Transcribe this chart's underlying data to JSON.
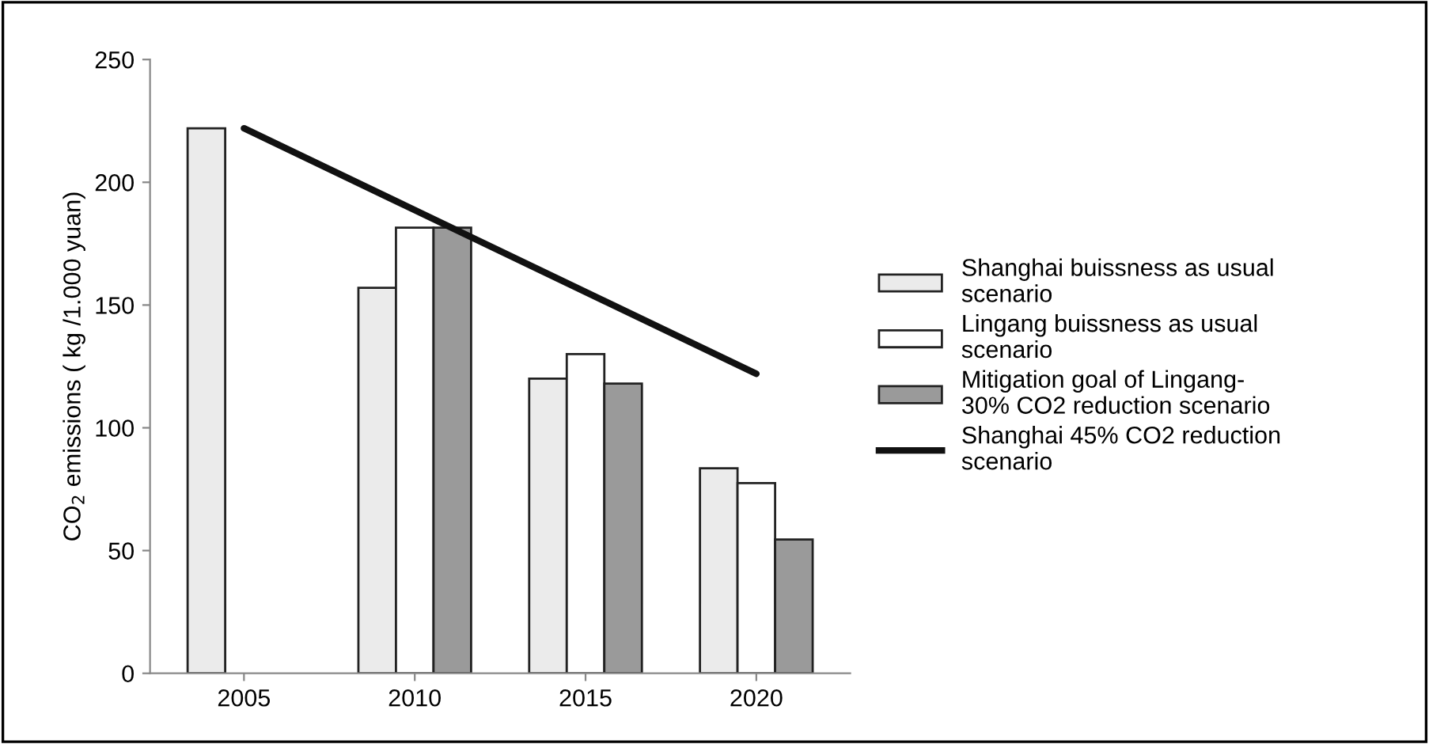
{
  "chart_data": {
    "type": "bar",
    "ylabel": "CO$_{2}$ emissions ( kg /1.000 yuan)",
    "categories": [
      "2005",
      "2010",
      "2015",
      "2020"
    ],
    "series": [
      {
        "name": "Shanghai buissness as usual\nscenario",
        "color": "#ebebeb",
        "values": [
          222,
          157,
          120,
          83.5
        ]
      },
      {
        "name": "Lingang buissness as usual\nscenario",
        "color": "#ffffff",
        "values": [
          null,
          181.5,
          130,
          77.5
        ]
      },
      {
        "name": "Mitigation goal of Lingang-\n30% CO2 reduction scenario",
        "color": "#9a9a9a",
        "values": [
          null,
          181.5,
          118,
          54.5
        ]
      },
      {
        "name": "Shanghai 45% CO2 reduction\nscenario",
        "type": "line",
        "color": "#111111",
        "values": [
          222,
          null,
          null,
          122
        ]
      }
    ],
    "ylim": [
      0,
      250
    ],
    "yticks": [
      0,
      50,
      100,
      150,
      200,
      250
    ],
    "grid": false,
    "legend": "right"
  }
}
